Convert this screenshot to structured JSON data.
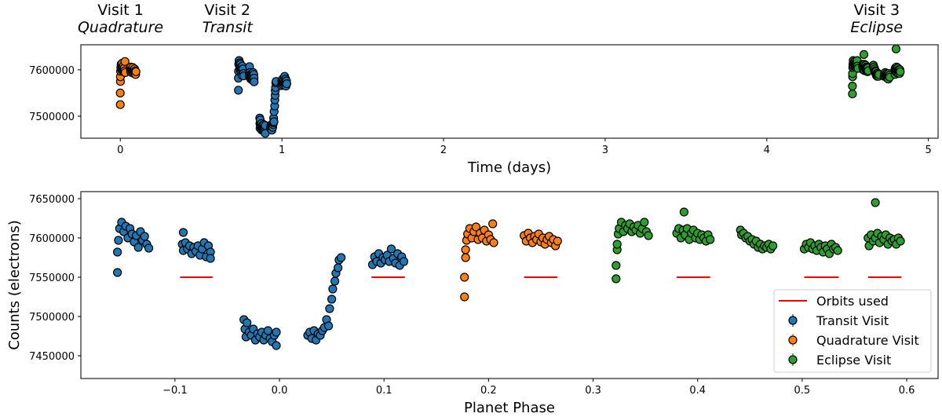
{
  "colors": {
    "transit": "#1f77b4",
    "quadrature": "#ff7f0e",
    "eclipse": "#2ca02c",
    "orbits_used": "#ff0000",
    "marker_edge": "#000000"
  },
  "titles": [
    {
      "line1": "Visit 1",
      "line2": "Quadrature",
      "time": 0.05
    },
    {
      "line1": "Visit 2",
      "line2": "Transit",
      "time": 0.93
    },
    {
      "line1": "Visit 3",
      "line2": "Eclipse",
      "time": 4.68
    }
  ],
  "chart_data": [
    {
      "type": "scatter",
      "panel": "top",
      "xlabel": "Time (days)",
      "ylabel": "",
      "xlim": [
        -0.244,
        5.06
      ],
      "ylim": [
        7452500,
        7654000
      ],
      "xticks": [
        0,
        1,
        2,
        3,
        4,
        5
      ],
      "xtick_labels": [
        "0",
        "1",
        "2",
        "3",
        "4",
        "5"
      ],
      "yticks": [
        7500000,
        7600000
      ],
      "ytick_labels": [
        "7500000",
        "7600000"
      ],
      "grid": false,
      "x_field": "time_days"
    },
    {
      "type": "scatter",
      "panel": "bottom",
      "xlabel": "Planet Phase",
      "ylabel": "Counts (electrons)",
      "xlim": [
        -0.19,
        0.63
      ],
      "ylim": [
        7421000,
        7659000
      ],
      "xticks": [
        -0.1,
        0.0,
        0.1,
        0.2,
        0.3,
        0.4,
        0.5,
        0.6
      ],
      "xtick_labels": [
        "−0.1",
        "0.0",
        "0.1",
        "0.2",
        "0.3",
        "0.4",
        "0.5",
        "0.6"
      ],
      "yticks": [
        7450000,
        7500000,
        7550000,
        7600000,
        7650000
      ],
      "ytick_labels": [
        "7450000",
        "7500000",
        "7550000",
        "7600000",
        "7650000"
      ],
      "grid": false,
      "x_field": "planet_phase",
      "legend": {
        "placement": "lower-right",
        "entries": [
          {
            "label": "Orbits used",
            "kind": "line",
            "series": "orbits_used"
          },
          {
            "label": "Transit Visit",
            "kind": "marker",
            "series": "transit"
          },
          {
            "label": "Quadrature Visit",
            "kind": "marker",
            "series": "quadrature"
          },
          {
            "label": "Eclipse Visit",
            "kind": "marker",
            "series": "eclipse"
          }
        ]
      },
      "orbits_used": {
        "counts": 7550000,
        "phase_ranges": [
          [
            -0.095,
            -0.064
          ],
          [
            0.088,
            0.12
          ],
          [
            0.234,
            0.266
          ],
          [
            0.38,
            0.412
          ],
          [
            0.502,
            0.535
          ],
          [
            0.563,
            0.595
          ]
        ]
      }
    }
  ],
  "point_fields": [
    "time_days",
    "planet_phase",
    "counts"
  ],
  "series": {
    "transit": {
      "name": "Transit Visit",
      "points": [
        [
          0.731,
          -0.155,
          7556000
        ],
        [
          0.731,
          -0.155,
          7582000
        ],
        [
          0.732,
          -0.154,
          7597000
        ],
        [
          0.733,
          -0.153,
          7612000
        ],
        [
          0.735,
          -0.151,
          7620000
        ],
        [
          0.738,
          -0.149,
          7608000
        ],
        [
          0.74,
          -0.147,
          7615000
        ],
        [
          0.742,
          -0.145,
          7600000
        ],
        [
          0.744,
          -0.143,
          7612000
        ],
        [
          0.746,
          -0.141,
          7605000
        ],
        [
          0.748,
          -0.139,
          7595000
        ],
        [
          0.751,
          -0.137,
          7603000
        ],
        [
          0.753,
          -0.135,
          7588000
        ],
        [
          0.755,
          -0.133,
          7608000
        ],
        [
          0.757,
          -0.131,
          7597000
        ],
        [
          0.759,
          -0.129,
          7602000
        ],
        [
          0.762,
          -0.127,
          7592000
        ],
        [
          0.764,
          -0.125,
          7587000
        ],
        [
          0.8,
          -0.092,
          7607000
        ],
        [
          0.799,
          -0.093,
          7592000
        ],
        [
          0.8,
          -0.092,
          7584000
        ],
        [
          0.802,
          -0.09,
          7594000
        ],
        [
          0.804,
          -0.088,
          7586000
        ],
        [
          0.806,
          -0.086,
          7590000
        ],
        [
          0.808,
          -0.084,
          7580000
        ],
        [
          0.811,
          -0.082,
          7588000
        ],
        [
          0.813,
          -0.08,
          7583000
        ],
        [
          0.815,
          -0.078,
          7590000
        ],
        [
          0.817,
          -0.076,
          7578000
        ],
        [
          0.819,
          -0.074,
          7586000
        ],
        [
          0.822,
          -0.072,
          7594000
        ],
        [
          0.824,
          -0.07,
          7576000
        ],
        [
          0.826,
          -0.068,
          7590000
        ],
        [
          0.828,
          -0.066,
          7582000
        ],
        [
          0.828,
          -0.066,
          7574000
        ],
        [
          0.863,
          -0.034,
          7496000
        ],
        [
          0.864,
          -0.033,
          7484000
        ],
        [
          0.865,
          -0.032,
          7474000
        ],
        [
          0.866,
          -0.031,
          7492000
        ],
        [
          0.868,
          -0.029,
          7480000
        ],
        [
          0.871,
          -0.027,
          7476000
        ],
        [
          0.873,
          -0.025,
          7484000
        ],
        [
          0.875,
          -0.023,
          7470000
        ],
        [
          0.877,
          -0.021,
          7478000
        ],
        [
          0.879,
          -0.019,
          7474000
        ],
        [
          0.881,
          -0.017,
          7480000
        ],
        [
          0.884,
          -0.015,
          7470000
        ],
        [
          0.886,
          -0.013,
          7476000
        ],
        [
          0.888,
          -0.011,
          7482000
        ],
        [
          0.89,
          -0.009,
          7472000
        ],
        [
          0.892,
          -0.007,
          7468000
        ],
        [
          0.895,
          -0.005,
          7476000
        ],
        [
          0.897,
          -0.003,
          7480000
        ],
        [
          0.897,
          -0.003,
          7463000
        ],
        [
          0.929,
          0.027,
          7476000
        ],
        [
          0.932,
          0.029,
          7480000
        ],
        [
          0.934,
          0.031,
          7472000
        ],
        [
          0.936,
          0.033,
          7482000
        ],
        [
          0.938,
          0.035,
          7470000
        ],
        [
          0.94,
          0.037,
          7478000
        ],
        [
          0.943,
          0.039,
          7476000
        ],
        [
          0.945,
          0.041,
          7482000
        ],
        [
          0.947,
          0.043,
          7486000
        ],
        [
          0.949,
          0.045,
          7496000
        ],
        [
          0.951,
          0.047,
          7488000
        ],
        [
          0.952,
          0.048,
          7510000
        ],
        [
          0.955,
          0.05,
          7522000
        ],
        [
          0.956,
          0.051,
          7535000
        ],
        [
          0.958,
          0.053,
          7545000
        ],
        [
          0.959,
          0.054,
          7555000
        ],
        [
          0.961,
          0.056,
          7562000
        ],
        [
          0.962,
          0.057,
          7572000
        ],
        [
          0.964,
          0.059,
          7575000
        ],
        [
          0.997,
          0.089,
          7566000
        ],
        [
          0.999,
          0.091,
          7576000
        ],
        [
          1.001,
          0.093,
          7570000
        ],
        [
          1.004,
          0.095,
          7580000
        ],
        [
          1.006,
          0.097,
          7568000
        ],
        [
          1.008,
          0.099,
          7575000
        ],
        [
          1.01,
          0.101,
          7572000
        ],
        [
          1.012,
          0.103,
          7578000
        ],
        [
          1.014,
          0.105,
          7570000
        ],
        [
          1.017,
          0.107,
          7586000
        ],
        [
          1.019,
          0.109,
          7574000
        ],
        [
          1.021,
          0.111,
          7568000
        ],
        [
          1.023,
          0.113,
          7580000
        ],
        [
          1.025,
          0.115,
          7565000
        ],
        [
          1.028,
          0.117,
          7576000
        ],
        [
          1.03,
          0.119,
          7570000
        ]
      ]
    },
    "quadrature": {
      "name": "Quadrature Visit",
      "points": [
        [
          0.0,
          0.177,
          7525000
        ],
        [
          0.0,
          0.177,
          7550000
        ],
        [
          0.001,
          0.178,
          7575000
        ],
        [
          0.001,
          0.178,
          7585000
        ],
        [
          0.002,
          0.179,
          7597000
        ],
        [
          0.003,
          0.18,
          7605000
        ],
        [
          0.005,
          0.182,
          7612000
        ],
        [
          0.008,
          0.184,
          7600000
        ],
        [
          0.01,
          0.186,
          7608000
        ],
        [
          0.012,
          0.188,
          7614000
        ],
        [
          0.014,
          0.19,
          7598000
        ],
        [
          0.016,
          0.192,
          7606000
        ],
        [
          0.019,
          0.194,
          7600000
        ],
        [
          0.021,
          0.196,
          7610000
        ],
        [
          0.023,
          0.198,
          7596000
        ],
        [
          0.025,
          0.2,
          7604000
        ],
        [
          0.027,
          0.202,
          7598000
        ],
        [
          0.029,
          0.204,
          7618000
        ],
        [
          0.031,
          0.205,
          7594000
        ],
        [
          0.062,
          0.234,
          7603000
        ],
        [
          0.064,
          0.236,
          7596000
        ],
        [
          0.066,
          0.238,
          7606000
        ],
        [
          0.069,
          0.24,
          7600000
        ],
        [
          0.071,
          0.242,
          7594000
        ],
        [
          0.073,
          0.244,
          7602000
        ],
        [
          0.075,
          0.246,
          7598000
        ],
        [
          0.077,
          0.248,
          7605000
        ],
        [
          0.08,
          0.25,
          7595000
        ],
        [
          0.082,
          0.252,
          7600000
        ],
        [
          0.084,
          0.254,
          7592000
        ],
        [
          0.086,
          0.256,
          7598000
        ],
        [
          0.088,
          0.258,
          7602000
        ],
        [
          0.09,
          0.26,
          7594000
        ],
        [
          0.093,
          0.262,
          7598000
        ],
        [
          0.095,
          0.264,
          7590000
        ],
        [
          0.097,
          0.266,
          7596000
        ]
      ]
    },
    "eclipse": {
      "name": "Eclipse Visit",
      "points": [
        [
          4.53,
          0.322,
          7548000
        ],
        [
          4.53,
          0.322,
          7565000
        ],
        [
          4.531,
          0.323,
          7585000
        ],
        [
          4.531,
          0.323,
          7592000
        ],
        [
          4.532,
          0.324,
          7605000
        ],
        [
          4.533,
          0.325,
          7612000
        ],
        [
          4.535,
          0.327,
          7620000
        ],
        [
          4.537,
          0.329,
          7608000
        ],
        [
          4.54,
          0.331,
          7616000
        ],
        [
          4.542,
          0.333,
          7612000
        ],
        [
          4.544,
          0.335,
          7618000
        ],
        [
          4.546,
          0.337,
          7608000
        ],
        [
          4.548,
          0.339,
          7614000
        ],
        [
          4.55,
          0.341,
          7610000
        ],
        [
          4.553,
          0.343,
          7616000
        ],
        [
          4.555,
          0.345,
          7606000
        ],
        [
          4.557,
          0.347,
          7612000
        ],
        [
          4.559,
          0.349,
          7620000
        ],
        [
          4.561,
          0.351,
          7608000
        ],
        [
          4.564,
          0.353,
          7603000
        ],
        [
          4.593,
          0.38,
          7606000
        ],
        [
          4.595,
          0.382,
          7612000
        ],
        [
          4.597,
          0.384,
          7600000
        ],
        [
          4.6,
          0.386,
          7610000
        ],
        [
          4.601,
          0.387,
          7633000
        ],
        [
          4.602,
          0.388,
          7604000
        ],
        [
          4.604,
          0.39,
          7612000
        ],
        [
          4.606,
          0.392,
          7598000
        ],
        [
          4.608,
          0.394,
          7606000
        ],
        [
          4.611,
          0.396,
          7610000
        ],
        [
          4.613,
          0.398,
          7600000
        ],
        [
          4.615,
          0.4,
          7606000
        ],
        [
          4.617,
          0.402,
          7598000
        ],
        [
          4.619,
          0.404,
          7604000
        ],
        [
          4.621,
          0.406,
          7600000
        ],
        [
          4.624,
          0.408,
          7596000
        ],
        [
          4.626,
          0.41,
          7604000
        ],
        [
          4.628,
          0.412,
          7598000
        ],
        [
          4.66,
          0.441,
          7610000
        ],
        [
          4.661,
          0.442,
          7604000
        ],
        [
          4.663,
          0.444,
          7606000
        ],
        [
          4.665,
          0.446,
          7600000
        ],
        [
          4.668,
          0.448,
          7602000
        ],
        [
          4.67,
          0.45,
          7596000
        ],
        [
          4.672,
          0.452,
          7598000
        ],
        [
          4.674,
          0.454,
          7592000
        ],
        [
          4.676,
          0.456,
          7596000
        ],
        [
          4.678,
          0.458,
          7588000
        ],
        [
          4.681,
          0.46,
          7592000
        ],
        [
          4.683,
          0.462,
          7586000
        ],
        [
          4.685,
          0.464,
          7590000
        ],
        [
          4.687,
          0.466,
          7588000
        ],
        [
          4.689,
          0.468,
          7592000
        ],
        [
          4.691,
          0.47,
          7586000
        ],
        [
          4.694,
          0.472,
          7590000
        ],
        [
          4.726,
          0.502,
          7586000
        ],
        [
          4.729,
          0.504,
          7592000
        ],
        [
          4.731,
          0.506,
          7588000
        ],
        [
          4.733,
          0.508,
          7594000
        ],
        [
          4.735,
          0.51,
          7586000
        ],
        [
          4.737,
          0.512,
          7590000
        ],
        [
          4.739,
          0.514,
          7584000
        ],
        [
          4.742,
          0.516,
          7592000
        ],
        [
          4.744,
          0.518,
          7588000
        ],
        [
          4.746,
          0.52,
          7582000
        ],
        [
          4.748,
          0.522,
          7590000
        ],
        [
          4.75,
          0.524,
          7586000
        ],
        [
          4.752,
          0.526,
          7580000
        ],
        [
          4.755,
          0.528,
          7592000
        ],
        [
          4.757,
          0.53,
          7586000
        ],
        [
          4.759,
          0.532,
          7588000
        ],
        [
          4.761,
          0.534,
          7584000
        ],
        [
          4.793,
          0.563,
          7600000
        ],
        [
          4.794,
          0.564,
          7590000
        ],
        [
          4.796,
          0.566,
          7604000
        ],
        [
          4.798,
          0.568,
          7596000
        ],
        [
          4.8,
          0.57,
          7645000
        ],
        [
          4.8,
          0.57,
          7600000
        ],
        [
          4.803,
          0.572,
          7606000
        ],
        [
          4.805,
          0.574,
          7594000
        ],
        [
          4.807,
          0.576,
          7602000
        ],
        [
          4.809,
          0.578,
          7598000
        ],
        [
          4.811,
          0.58,
          7604000
        ],
        [
          4.813,
          0.582,
          7592000
        ],
        [
          4.815,
          0.584,
          7600000
        ],
        [
          4.818,
          0.586,
          7596000
        ],
        [
          4.82,
          0.588,
          7598000
        ],
        [
          4.822,
          0.59,
          7592000
        ],
        [
          4.824,
          0.592,
          7600000
        ],
        [
          4.826,
          0.594,
          7596000
        ]
      ]
    }
  }
}
